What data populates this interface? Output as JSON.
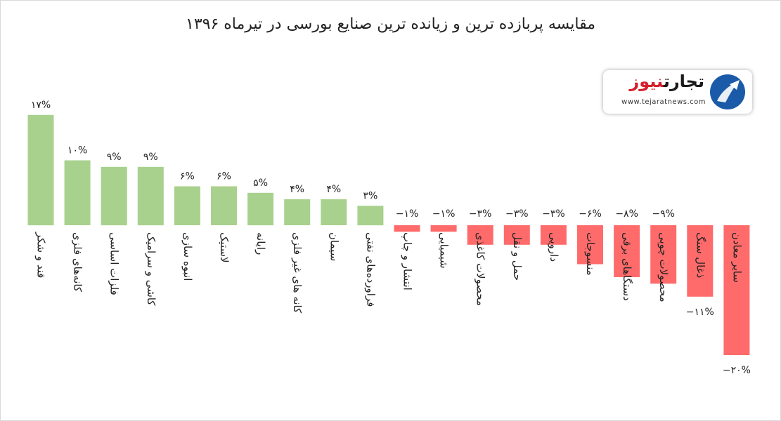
{
  "chart_data": {
    "type": "bar",
    "title": "مقایسه پربازده ترین و زیانده ترین صنایع بورسی در  تیرماه ۱۳۹۶",
    "categories": [
      "قند و شکر",
      "کانه‌های فلزی",
      "فلزات اساسی",
      "کاشی و سرامیک",
      "انبوه سازی",
      "لاستیک",
      "رایانه",
      "کانه های غیر فلزی",
      "سیمان",
      "فراورده‌های نفتی",
      "انتشار و چاپ",
      "شیمیایی",
      "محصولات کاغذی",
      "حمل و نقل",
      "دارویی",
      "منسوجات",
      "دستگاهای برقی",
      "محصولات چوبی",
      "ذغال سنگ",
      "سایر معادن"
    ],
    "values": [
      17,
      10,
      9,
      9,
      6,
      6,
      5,
      4,
      4,
      3,
      -1,
      -1,
      -3,
      -3,
      -3,
      -6,
      -8,
      -9,
      -11,
      -20
    ],
    "value_labels": [
      "۱۷%",
      "۱۰%",
      "۹%",
      "۹%",
      "۶%",
      "۶%",
      "۵%",
      "۴%",
      "۴%",
      "۳%",
      "−۱%",
      "−۱%",
      "−۳%",
      "−۳%",
      "−۳%",
      "−۶%",
      "−۸%",
      "−۹%",
      "−۱۱%",
      "−۲۰%"
    ],
    "colors": {
      "positive": "#a9d18e",
      "negative": "#ff6b6b"
    },
    "xlabel": "",
    "ylabel": "",
    "ylim": [
      -20,
      17
    ],
    "grid": false,
    "legend": "none"
  },
  "logo": {
    "name_part1": "تجارت",
    "name_part2": "نیوز",
    "url": "www.tejaratnews.com"
  }
}
